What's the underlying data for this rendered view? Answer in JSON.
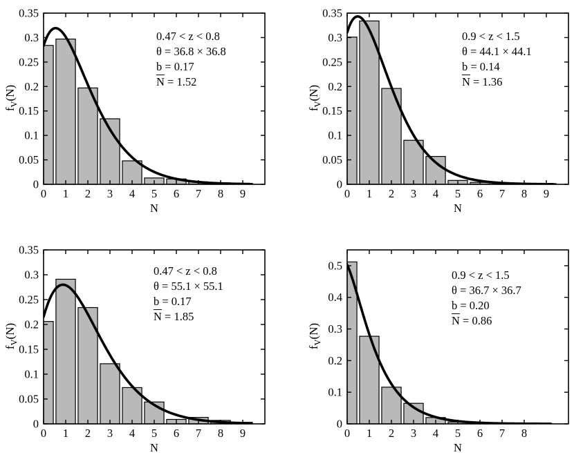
{
  "figure": {
    "background": "#ffffff",
    "bar_fill": "#b9b9b9",
    "bar_edge": "#000000",
    "curve_color": "#000000",
    "axis_color": "#000000",
    "text_color": "#000000"
  },
  "ylabel": {
    "pre": "f",
    "sub": "V",
    "post": "(N)"
  },
  "chart_data": [
    {
      "type": "bar",
      "subtype": "histogram-with-fit-curve",
      "position": "top-left",
      "xlabel": "N",
      "ylabel": "f_V(N)",
      "xlim": [
        0,
        10
      ],
      "ylim": [
        0,
        0.35
      ],
      "grid": false,
      "legend": "none",
      "xticks": [
        0,
        1,
        2,
        3,
        4,
        5,
        6,
        7,
        8,
        9
      ],
      "xtick_labels": [
        "0",
        "1",
        "2",
        "3",
        "4",
        "5",
        "6",
        "7",
        "8",
        "9"
      ],
      "yticks": [
        0,
        0.05,
        0.1,
        0.15,
        0.2,
        0.25,
        0.3,
        0.35
      ],
      "ytick_labels": [
        "0",
        "0.05",
        "0.1",
        "0.15",
        "0.2",
        "0.25",
        "0.3",
        "0.35"
      ],
      "categories": [
        0,
        1,
        2,
        3,
        4,
        5,
        6,
        7,
        8,
        9
      ],
      "values": [
        0.284,
        0.297,
        0.197,
        0.134,
        0.048,
        0.013,
        0.011,
        0.005,
        0.003,
        0.002
      ],
      "curve": {
        "model": "GQED",
        "b": 0.17,
        "nbar": 1.52,
        "x_end": 9.3
      },
      "annotation": {
        "z": "0.47 < z < 0.8",
        "theta": "θ = 36.8 × 36.8",
        "b": "b = 0.17",
        "nbar_symbol": "N",
        "nbar_rest": " = 1.52"
      }
    },
    {
      "type": "bar",
      "subtype": "histogram-with-fit-curve",
      "position": "top-right",
      "xlabel": "N",
      "ylabel": "f_V(N)",
      "xlim": [
        0,
        10
      ],
      "ylim": [
        0,
        0.35
      ],
      "grid": false,
      "legend": "none",
      "xticks": [
        0,
        1,
        2,
        3,
        4,
        5,
        6,
        7,
        8,
        9
      ],
      "xtick_labels": [
        "0",
        "1",
        "2",
        "3",
        "4",
        "5",
        "6",
        "7",
        "8",
        "9"
      ],
      "yticks": [
        0,
        0.05,
        0.1,
        0.15,
        0.2,
        0.25,
        0.3,
        0.35
      ],
      "ytick_labels": [
        "0",
        "0.05",
        "0.1",
        "0.15",
        "0.2",
        "0.25",
        "0.3",
        "0.35"
      ],
      "categories": [
        0,
        1,
        2,
        3,
        4,
        5,
        6,
        7,
        8,
        9
      ],
      "values": [
        0.301,
        0.334,
        0.196,
        0.09,
        0.057,
        0.008,
        0.004,
        0.003,
        0.002,
        0.0015
      ],
      "curve": {
        "model": "GQED",
        "b": 0.14,
        "nbar": 1.36,
        "x_end": 9.3
      },
      "annotation": {
        "z": "0.9 < z < 1.5",
        "theta": "θ = 44.1 × 44.1",
        "b": "b = 0.14",
        "nbar_symbol": "N",
        "nbar_rest": " = 1.36"
      }
    },
    {
      "type": "bar",
      "subtype": "histogram-with-fit-curve",
      "position": "bottom-left",
      "xlabel": "N",
      "ylabel": "f_V(N)",
      "xlim": [
        0,
        10
      ],
      "ylim": [
        0,
        0.35
      ],
      "grid": false,
      "legend": "none",
      "xticks": [
        0,
        1,
        2,
        3,
        4,
        5,
        6,
        7,
        8,
        9
      ],
      "xtick_labels": [
        "0",
        "1",
        "2",
        "3",
        "4",
        "5",
        "6",
        "7",
        "8",
        "9"
      ],
      "yticks": [
        0,
        0.05,
        0.1,
        0.15,
        0.2,
        0.25,
        0.3,
        0.35
      ],
      "ytick_labels": [
        "0",
        "0.05",
        "0.1",
        "0.15",
        "0.2",
        "0.25",
        "0.3",
        "0.35"
      ],
      "categories": [
        0,
        1,
        2,
        3,
        4,
        5,
        6,
        7,
        8,
        9
      ],
      "values": [
        0.206,
        0.291,
        0.234,
        0.121,
        0.073,
        0.044,
        0.009,
        0.013,
        0.007,
        0.003
      ],
      "curve": {
        "model": "GQED",
        "b": 0.17,
        "nbar": 1.85,
        "x_end": 9.4
      },
      "annotation": {
        "z": "0.47 < z < 0.8",
        "theta": "θ = 55.1 × 55.1",
        "b": "b = 0.17",
        "nbar_symbol": "N",
        "nbar_rest": " = 1.85"
      }
    },
    {
      "type": "bar",
      "subtype": "histogram-with-fit-curve",
      "position": "bottom-right",
      "xlabel": "N",
      "ylabel": "f_V(N)",
      "xlim": [
        0,
        10
      ],
      "ylim": [
        0,
        0.55
      ],
      "grid": false,
      "legend": "none",
      "xticks": [
        0,
        1,
        2,
        3,
        4,
        5,
        6,
        7,
        8
      ],
      "xtick_labels": [
        "0",
        "1",
        "2",
        "3",
        "4",
        "5",
        "6",
        "7",
        "8"
      ],
      "yticks": [
        0,
        0.1,
        0.2,
        0.3,
        0.4,
        0.5
      ],
      "ytick_labels": [
        "0",
        "0.1",
        "0.2",
        "0.3",
        "0.4",
        "0.5"
      ],
      "categories": [
        0,
        1,
        2,
        3,
        4,
        5,
        6,
        7,
        8
      ],
      "values": [
        0.512,
        0.277,
        0.116,
        0.065,
        0.02,
        0.006,
        0.004,
        0.003,
        0.002
      ],
      "curve": {
        "model": "GQED",
        "b": 0.2,
        "nbar": 0.86,
        "x_end": 9.2
      },
      "annotation": {
        "z": "0.9 < z < 1.5",
        "theta": "θ = 36.7 × 36.7",
        "b": "b = 0.20",
        "nbar_symbol": "N",
        "nbar_rest": " = 0.86"
      }
    }
  ]
}
